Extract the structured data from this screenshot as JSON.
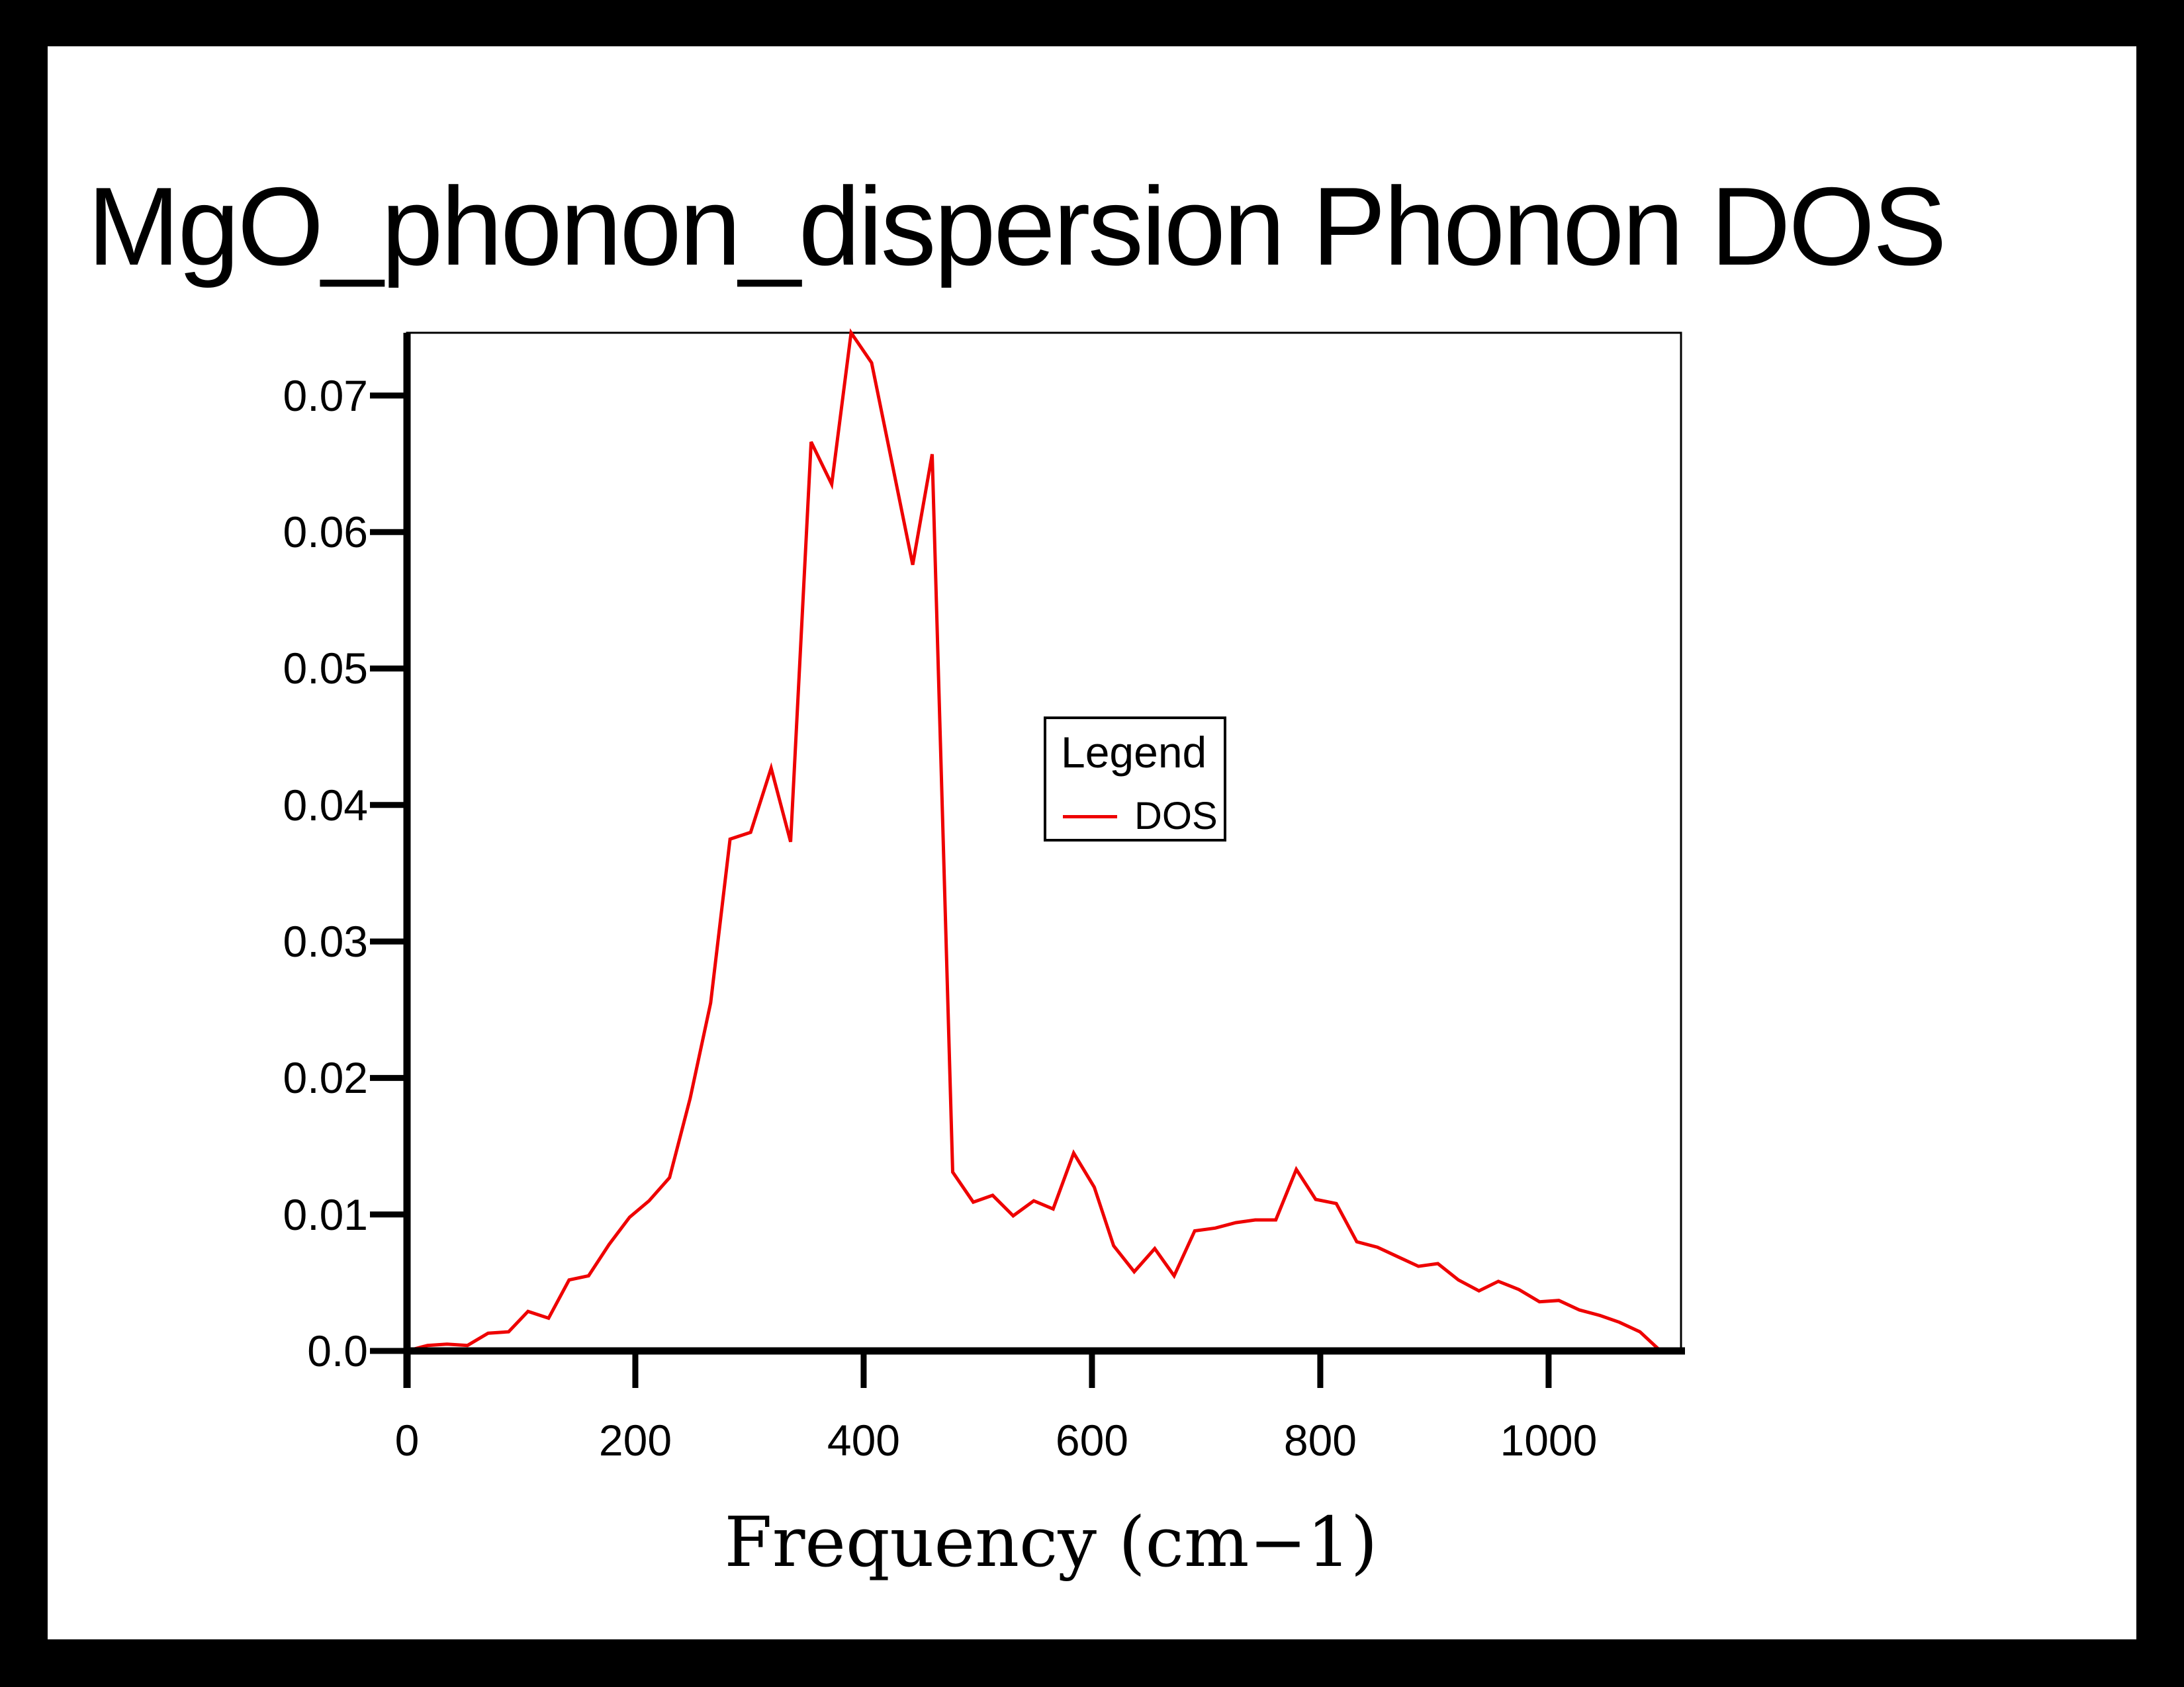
{
  "title": "MgO_phonon_dispersion Phonon DOS",
  "colors": {
    "background": "#000000",
    "page": "#ffffff",
    "axis": "#000000",
    "dos_line": "#ee0000"
  },
  "legend": {
    "title": "Legend",
    "position": "inside-center",
    "entries": [
      {
        "label": "DOS",
        "color": "#ee0000"
      }
    ]
  },
  "chart_data": {
    "type": "line",
    "title": "MgO_phonon_dispersion Phonon DOS",
    "xlabel": "Frequency (cm−1)",
    "ylabel": "",
    "xlim": [
      0,
      1116
    ],
    "ylim": [
      0,
      0.0746
    ],
    "grid": false,
    "x_ticks": [
      {
        "value": 0,
        "label": "0"
      },
      {
        "value": 200,
        "label": "200"
      },
      {
        "value": 400,
        "label": "400"
      },
      {
        "value": 600,
        "label": "600"
      },
      {
        "value": 800,
        "label": "800"
      },
      {
        "value": 1000,
        "label": "1000"
      }
    ],
    "y_ticks": [
      {
        "value": 0.0,
        "label": "0.0"
      },
      {
        "value": 0.01,
        "label": "0.01"
      },
      {
        "value": 0.02,
        "label": "0.02"
      },
      {
        "value": 0.03,
        "label": "0.03"
      },
      {
        "value": 0.04,
        "label": "0.04"
      },
      {
        "value": 0.05,
        "label": "0.05"
      },
      {
        "value": 0.06,
        "label": "0.06"
      },
      {
        "value": 0.07,
        "label": "0.07"
      }
    ],
    "series": [
      {
        "name": "DOS",
        "color": "#ee0000",
        "x": [
          0,
          18,
          35,
          53,
          71,
          89,
          106,
          124,
          142,
          159,
          177,
          195,
          212,
          230,
          248,
          266,
          283,
          301,
          319,
          336,
          354,
          372,
          389,
          407,
          425,
          443,
          460,
          478,
          496,
          513,
          531,
          549,
          566,
          584,
          602,
          619,
          637,
          655,
          672,
          690,
          708,
          726,
          743,
          761,
          779,
          796,
          814,
          832,
          850,
          868,
          886,
          903,
          921,
          939,
          956,
          974,
          992,
          1009,
          1027,
          1045,
          1062,
          1080,
          1098,
          1116
        ],
        "y": [
          0.0,
          0.0004,
          0.0005,
          0.0004,
          0.0013,
          0.0014,
          0.0029,
          0.0024,
          0.0052,
          0.0055,
          0.0078,
          0.0098,
          0.011,
          0.0127,
          0.0185,
          0.0255,
          0.0375,
          0.038,
          0.0427,
          0.0373,
          0.0666,
          0.0635,
          0.0746,
          0.0724,
          0.065,
          0.0576,
          0.0657,
          0.0131,
          0.0109,
          0.0114,
          0.0099,
          0.011,
          0.0104,
          0.0145,
          0.012,
          0.0077,
          0.0058,
          0.0075,
          0.0055,
          0.0088,
          0.009,
          0.0094,
          0.0096,
          0.0096,
          0.0133,
          0.0111,
          0.0108,
          0.008,
          0.0076,
          0.0069,
          0.0062,
          0.0064,
          0.0052,
          0.0044,
          0.0051,
          0.0045,
          0.0036,
          0.0037,
          0.003,
          0.0026,
          0.0021,
          0.0014,
          0.0,
          0.0
        ]
      }
    ]
  }
}
